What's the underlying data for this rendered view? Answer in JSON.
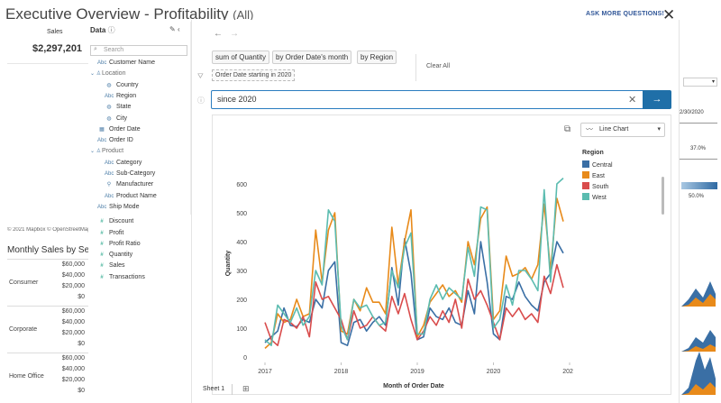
{
  "dashboard": {
    "title": "Executive Overview - Profitability",
    "title_suffix": "(All)",
    "ask_link": "ASK MORE QUESTIONS!",
    "kpi_label": "Sales",
    "kpi_value": "$2,297,201",
    "map_credit": "© 2021 Mapbox © OpenStreetMap",
    "monthly_title": "Monthly Sales by Segment",
    "segments": [
      {
        "name": "Consumer",
        "ticks": [
          "$60,000",
          "$40,000",
          "$20,000",
          "$0"
        ]
      },
      {
        "name": "Corporate",
        "ticks": [
          "$60,000",
          "$40,000",
          "$20,000",
          "$0"
        ]
      },
      {
        "name": "Home Office",
        "ticks": [
          "$60,000",
          "$40,000",
          "$20,000",
          "$0"
        ]
      }
    ],
    "right_values": [
      "2/30/2020",
      "37.0%",
      "50.0%"
    ]
  },
  "data_pane": {
    "header": "Data",
    "search_placeholder": "Search",
    "fields": [
      {
        "label": "Customer Name",
        "icon": "abc",
        "kind": "dim"
      },
      {
        "label": "Location",
        "icon": "hierarchy",
        "kind": "folder"
      },
      {
        "label": "Country",
        "icon": "globe",
        "kind": "dim"
      },
      {
        "label": "Region",
        "icon": "abc",
        "kind": "dim"
      },
      {
        "label": "State",
        "icon": "globe",
        "kind": "dim"
      },
      {
        "label": "City",
        "icon": "globe",
        "kind": "dim"
      },
      {
        "label": "Order Date",
        "icon": "calendar",
        "kind": "dim"
      },
      {
        "label": "Order ID",
        "icon": "abc",
        "kind": "dim"
      },
      {
        "label": "Product",
        "icon": "hierarchy",
        "kind": "folder"
      },
      {
        "label": "Category",
        "icon": "abc",
        "kind": "dim"
      },
      {
        "label": "Sub-Category",
        "icon": "abc",
        "kind": "dim"
      },
      {
        "label": "Manufacturer",
        "icon": "link",
        "kind": "dim"
      },
      {
        "label": "Product Name",
        "icon": "abc",
        "kind": "dim"
      },
      {
        "label": "Ship Mode",
        "icon": "abc",
        "kind": "dim"
      },
      {
        "label": "Discount",
        "icon": "measure",
        "kind": "measure"
      },
      {
        "label": "Profit",
        "icon": "measure",
        "kind": "measure"
      },
      {
        "label": "Profit Ratio",
        "icon": "measure",
        "kind": "measure"
      },
      {
        "label": "Quantity",
        "icon": "measure",
        "kind": "measure"
      },
      {
        "label": "Sales",
        "icon": "measure",
        "kind": "measure"
      },
      {
        "label": "Transactions",
        "icon": "measure",
        "kind": "measure"
      }
    ]
  },
  "ask_data": {
    "pills": [
      "sum of Quantity",
      "by Order Date's month",
      "by Region"
    ],
    "filter_pill": "Order Date starting in 2020",
    "clear_all": "Clear All",
    "query_text": "since 2020",
    "viz_type": "Line Chart",
    "sheet_tab": "Sheet 1"
  },
  "chart_data": {
    "type": "line",
    "title": "",
    "xlabel": "Month of Order Date",
    "ylabel": "Quantity",
    "x_ticks": [
      "2017",
      "2018",
      "2019",
      "2020",
      "2021"
    ],
    "y_ticks": [
      0,
      100,
      200,
      300,
      400,
      500,
      600
    ],
    "ylim": [
      0,
      650
    ],
    "x_start": "2017-01",
    "legend_title": "Region",
    "legend_position": "right",
    "series": [
      {
        "name": "Central",
        "color": "#3a6fa5",
        "values": [
          50,
          70,
          90,
          170,
          110,
          105,
          130,
          120,
          200,
          170,
          300,
          330,
          50,
          40,
          120,
          130,
          90,
          120,
          140,
          110,
          310,
          180,
          410,
          290,
          60,
          70,
          170,
          140,
          130,
          170,
          120,
          110,
          230,
          150,
          400,
          260,
          80,
          60,
          210,
          200,
          260,
          210,
          180,
          160,
          260,
          290,
          400,
          360
        ]
      },
      {
        "name": "East",
        "color": "#e88a1a",
        "values": [
          30,
          50,
          150,
          120,
          130,
          200,
          140,
          150,
          440,
          260,
          440,
          500,
          90,
          80,
          200,
          160,
          240,
          190,
          190,
          150,
          450,
          250,
          400,
          510,
          70,
          110,
          190,
          220,
          250,
          210,
          230,
          190,
          400,
          320,
          480,
          520,
          130,
          160,
          350,
          280,
          290,
          310,
          270,
          320,
          530,
          300,
          550,
          470
        ]
      },
      {
        "name": "South",
        "color": "#d94c4c",
        "values": [
          120,
          60,
          40,
          130,
          120,
          100,
          140,
          70,
          260,
          200,
          210,
          170,
          130,
          60,
          160,
          100,
          110,
          140,
          110,
          90,
          210,
          150,
          220,
          130,
          60,
          90,
          140,
          110,
          160,
          120,
          200,
          100,
          270,
          200,
          230,
          180,
          120,
          60,
          170,
          140,
          170,
          130,
          150,
          120,
          280,
          220,
          320,
          240
        ]
      },
      {
        "name": "West",
        "color": "#5bbcb0",
        "values": [
          60,
          40,
          180,
          150,
          120,
          170,
          110,
          140,
          300,
          250,
          510,
          470,
          110,
          60,
          200,
          170,
          180,
          140,
          110,
          120,
          300,
          240,
          380,
          430,
          80,
          80,
          200,
          250,
          200,
          240,
          220,
          200,
          380,
          280,
          520,
          510,
          100,
          130,
          250,
          180,
          300,
          300,
          270,
          230,
          580,
          260,
          600,
          620
        ]
      }
    ]
  }
}
